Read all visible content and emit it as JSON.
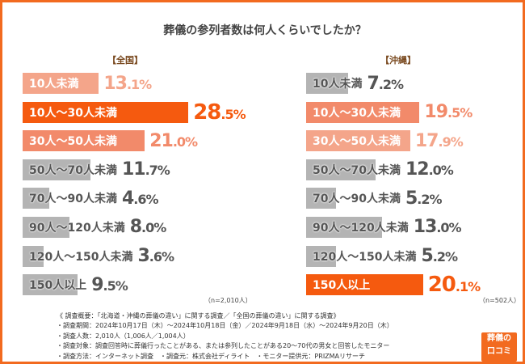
{
  "title": "葬儀の参列者数は何人くらいでしたか？",
  "colors": {
    "top": "#f55a0f",
    "second": "#f28a6a",
    "third": "#f4a58a",
    "other": "#b4b4b4",
    "frame": "#f26a1f"
  },
  "chart_data": [
    {
      "type": "bar",
      "orientation": "horizontal",
      "title": "【全国】",
      "note": "（n=2,010人）",
      "categories": [
        "10人未満",
        "10人～30人未満",
        "30人～50人未満",
        "50人～70人未満",
        "70人～90人未満",
        "90人～120人未満",
        "120人～150人未満",
        "150人以上"
      ],
      "values": [
        13.1,
        28.5,
        21.0,
        11.7,
        4.6,
        8.0,
        3.6,
        9.5
      ],
      "labels": [
        "13.1%",
        "28.5%",
        "21.0%",
        "11.7%",
        "4.6%",
        "8.0%",
        "3.6%",
        "9.5%"
      ],
      "rank": [
        "third",
        "top",
        "second",
        "other",
        "other",
        "other",
        "other",
        "other"
      ]
    },
    {
      "type": "bar",
      "orientation": "horizontal",
      "title": "【沖縄】",
      "note": "（n=502人）",
      "categories": [
        "10人未満",
        "10人～30人未満",
        "30人～50人未満",
        "50人～70人未満",
        "70人～90人未満",
        "90人～120人未満",
        "120人～150人未満",
        "150人以上"
      ],
      "values": [
        7.2,
        19.5,
        17.9,
        12.0,
        5.2,
        13.0,
        5.2,
        20.1
      ],
      "labels": [
        "7.2%",
        "19.5%",
        "17.9%",
        "12.0%",
        "5.2%",
        "13.0%",
        "5.2%",
        "20.1%"
      ],
      "rank": [
        "other",
        "second",
        "third",
        "other",
        "other",
        "other",
        "other",
        "top"
      ]
    }
  ],
  "notes": [
    "《 調査概要：「北海道・沖縄の葬儀の違い」に関する調査／「全国の葬儀の違い」に関する調査》",
    "・調査期間：2024年10月17日（木）～2024年10月18日（金）／2024年9月18日（水）～2024年9月20日（木）",
    "・調査人数：2,010人（1,006人／1,004人）",
    "・調査対象：調査回答時に葬儀行ったことがある、または参列したことがある20～70代の男女と回答したモニター",
    "・調査方法：インターネット調査　・調査元：株式会社ディライト　・モニター提供元：PRIZMAリサーチ"
  ],
  "logo": {
    "line1": "葬儀の",
    "line2": "口コミ"
  }
}
